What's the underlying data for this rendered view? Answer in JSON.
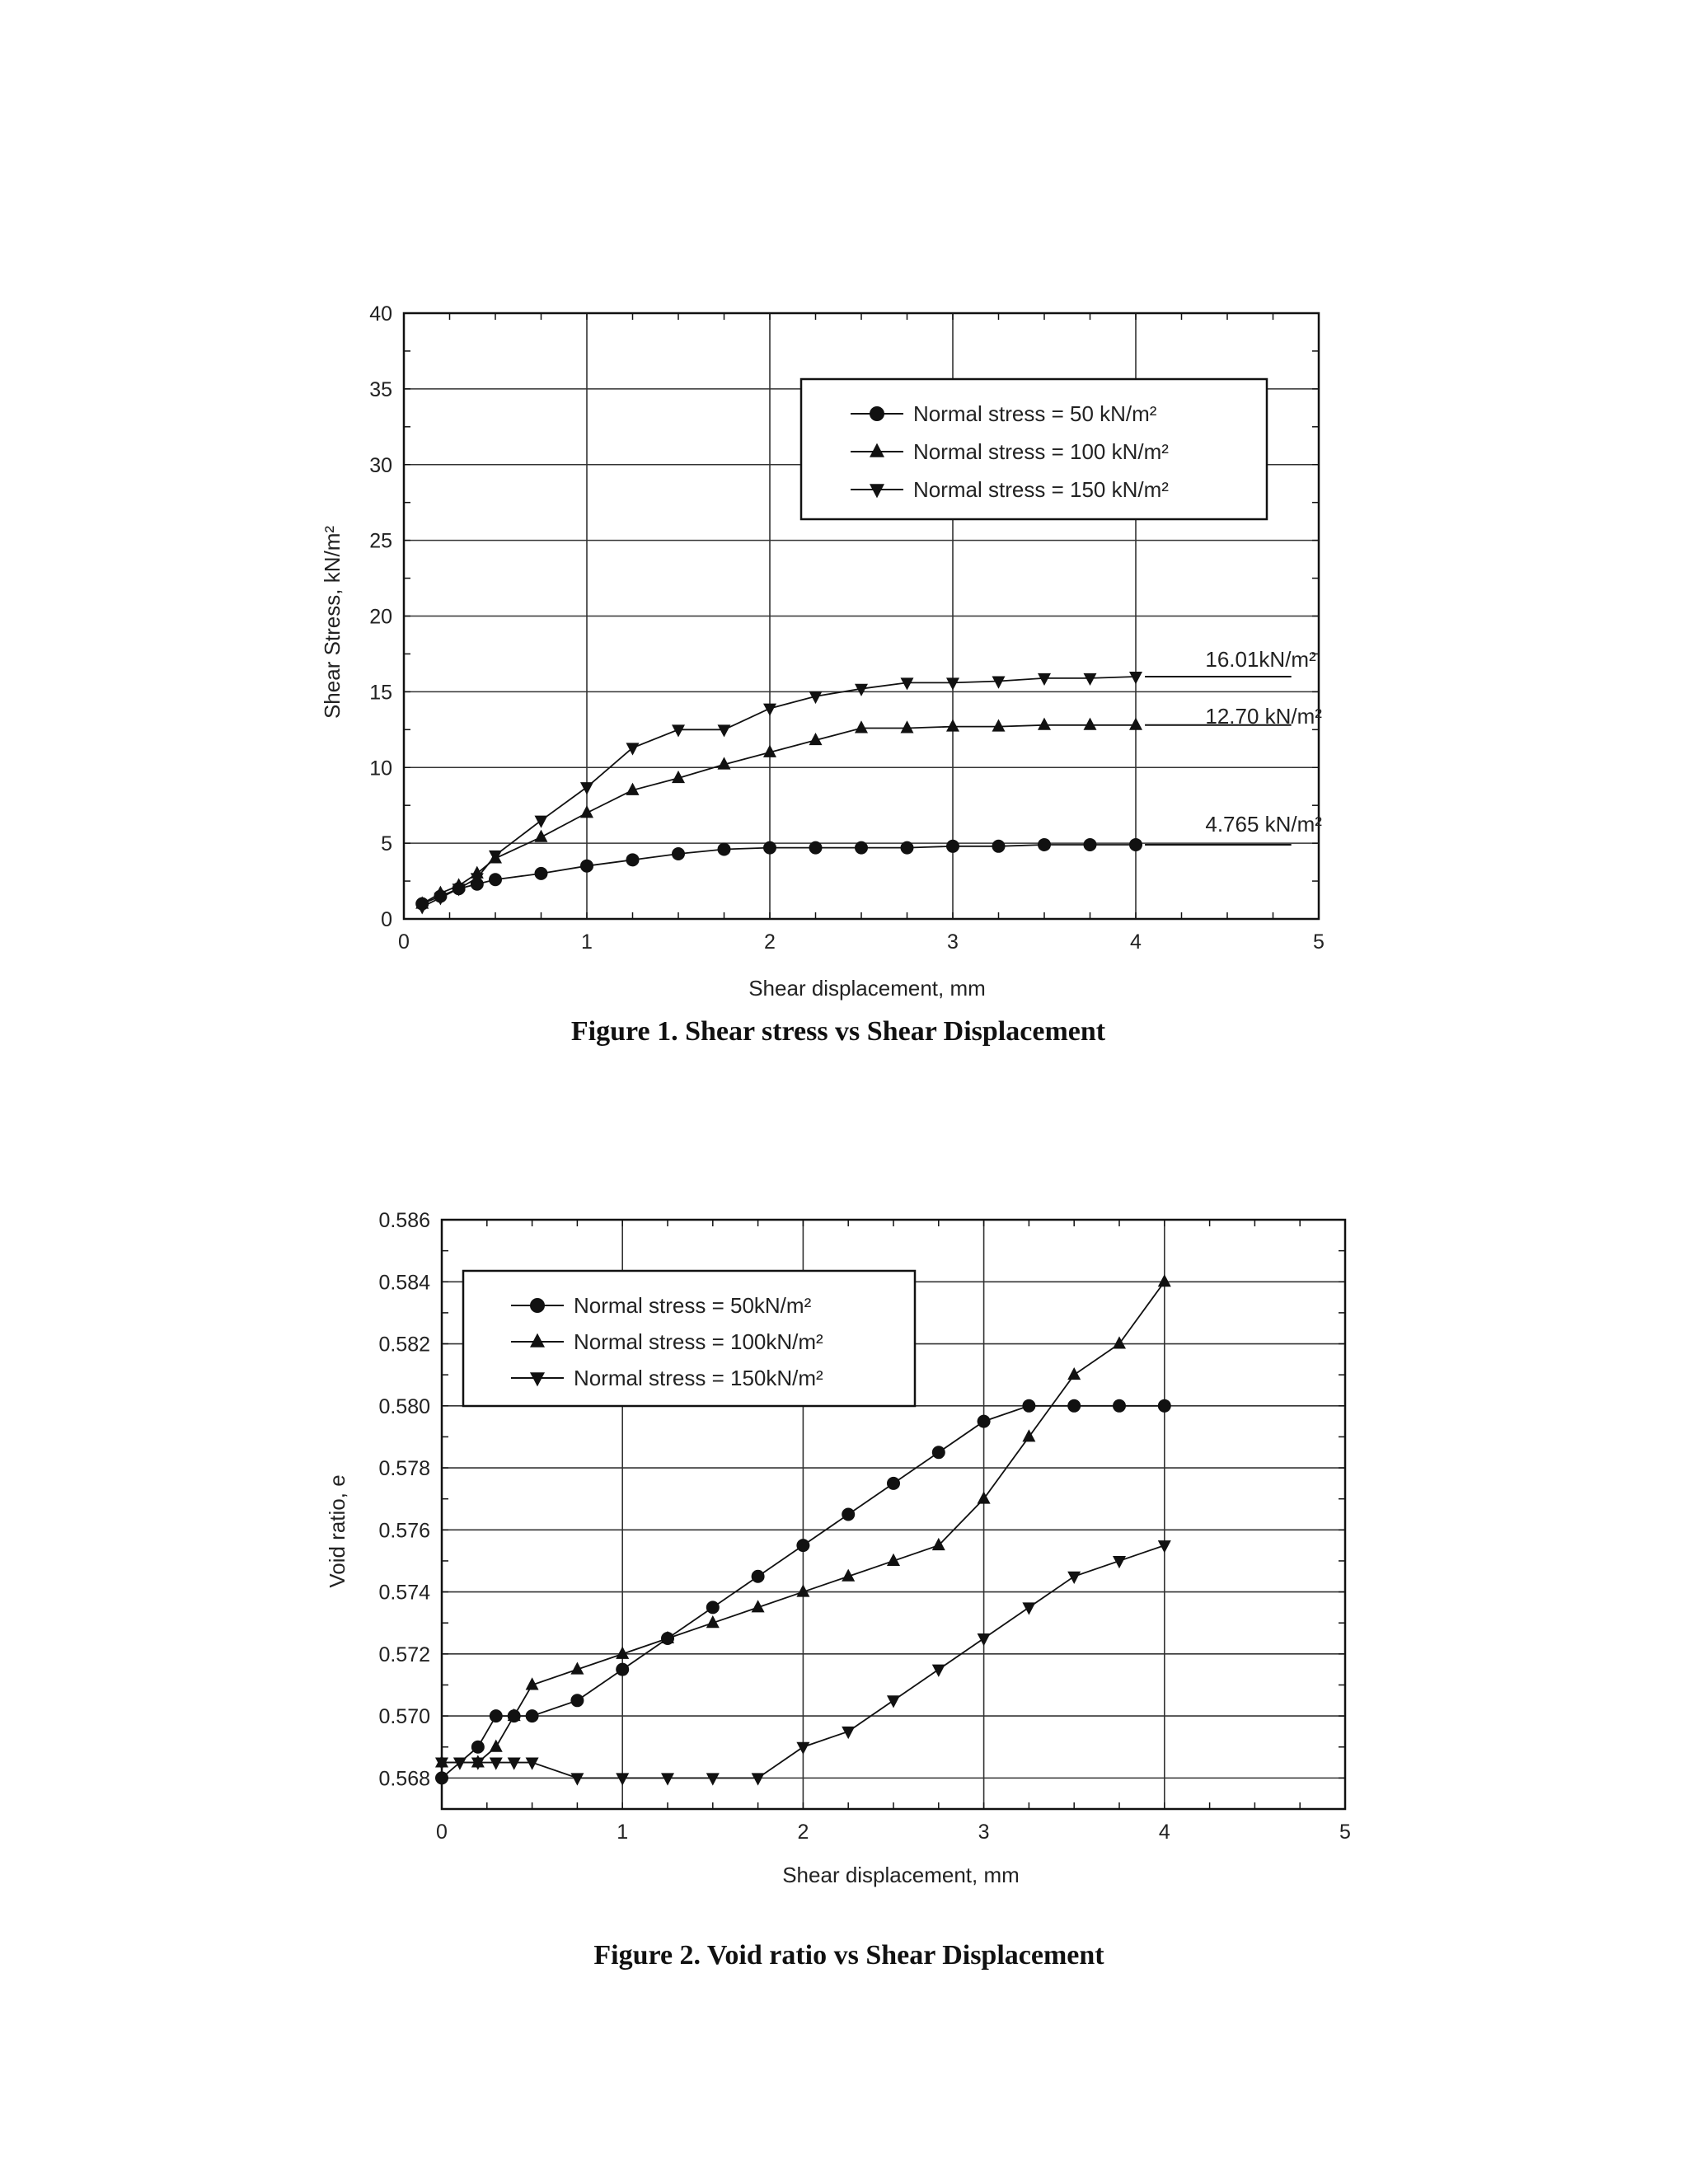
{
  "chart_data": [
    {
      "type": "line",
      "caption": "Figure 1. Shear stress vs Shear Displacement",
      "xlabel": "Shear displacement,  mm",
      "ylabel": "Shear Stress,  kN/m²",
      "xlim": [
        0,
        5
      ],
      "ylim": [
        0,
        40
      ],
      "x_ticks": [
        "0",
        "1",
        "2",
        "3",
        "4",
        "5"
      ],
      "y_ticks": [
        "0",
        "5",
        "10",
        "15",
        "20",
        "25",
        "30",
        "35",
        "40"
      ],
      "grid": true,
      "legend_position": "top-right",
      "series": [
        {
          "name": "Normal stress =  50 kN/m²",
          "marker": "circle",
          "x": [
            0.1,
            0.2,
            0.3,
            0.4,
            0.5,
            0.75,
            1.0,
            1.25,
            1.5,
            1.75,
            2.0,
            2.25,
            2.5,
            2.75,
            3.0,
            3.25,
            3.5,
            3.75,
            4.0
          ],
          "y": [
            1.0,
            1.5,
            2.0,
            2.3,
            2.6,
            3.0,
            3.5,
            3.9,
            4.3,
            4.6,
            4.7,
            4.7,
            4.7,
            4.7,
            4.8,
            4.8,
            4.9,
            4.9,
            4.9
          ]
        },
        {
          "name": "Normal stress = 100 kN/m²",
          "marker": "triangle-up",
          "x": [
            0.1,
            0.2,
            0.3,
            0.4,
            0.5,
            0.75,
            1.0,
            1.25,
            1.5,
            1.75,
            2.0,
            2.25,
            2.5,
            2.75,
            3.0,
            3.25,
            3.5,
            3.75,
            4.0
          ],
          "y": [
            1.0,
            1.7,
            2.2,
            3.0,
            4.0,
            5.4,
            7.0,
            8.5,
            9.3,
            10.2,
            11.0,
            11.8,
            12.6,
            12.6,
            12.7,
            12.7,
            12.8,
            12.8,
            12.8
          ]
        },
        {
          "name": "Normal stress = 150 kN/m²",
          "marker": "triangle-down",
          "x": [
            0.1,
            0.2,
            0.3,
            0.4,
            0.5,
            0.75,
            1.0,
            1.25,
            1.5,
            1.75,
            2.0,
            2.25,
            2.5,
            2.75,
            3.0,
            3.25,
            3.5,
            3.75,
            4.0
          ],
          "y": [
            0.8,
            1.4,
            2.0,
            2.7,
            4.2,
            6.5,
            8.7,
            11.3,
            12.5,
            12.5,
            13.9,
            14.7,
            15.2,
            15.6,
            15.6,
            15.7,
            15.9,
            15.9,
            16.0
          ]
        }
      ],
      "annotations": [
        "16.01kN/m²",
        "12.70 kN/m²",
        "4.765 kN/m²"
      ]
    },
    {
      "type": "line",
      "caption": "Figure 2. Void ratio vs Shear Displacement",
      "xlabel": "Shear displacement, mm",
      "ylabel": "Void ratio, e",
      "xlim": [
        0,
        5
      ],
      "ylim": [
        0.567,
        0.586
      ],
      "x_ticks": [
        "0",
        "1",
        "2",
        "3",
        "4",
        "5"
      ],
      "y_ticks": [
        "0.568",
        "0.570",
        "0.572",
        "0.574",
        "0.576",
        "0.578",
        "0.580",
        "0.582",
        "0.584",
        "0.586"
      ],
      "grid": true,
      "legend_position": "top-left",
      "series": [
        {
          "name": "Normal stress =  50kN/m²",
          "marker": "circle",
          "x": [
            0,
            0.2,
            0.3,
            0.4,
            0.5,
            0.75,
            1.0,
            1.25,
            1.5,
            1.75,
            2.0,
            2.25,
            2.5,
            2.75,
            3.0,
            3.25,
            3.5,
            3.75,
            4.0
          ],
          "y": [
            0.568,
            0.569,
            0.57,
            0.57,
            0.57,
            0.5705,
            0.5715,
            0.5725,
            0.5735,
            0.5745,
            0.5755,
            0.5765,
            0.5775,
            0.5785,
            0.5795,
            0.58,
            0.58,
            0.58,
            0.58
          ]
        },
        {
          "name": "Normal stress = 100kN/m²",
          "marker": "triangle-up",
          "x": [
            0,
            0.2,
            0.3,
            0.4,
            0.5,
            0.75,
            1.0,
            1.25,
            1.5,
            1.75,
            2.0,
            2.25,
            2.5,
            2.75,
            3.0,
            3.25,
            3.5,
            3.75,
            4.0
          ],
          "y": [
            0.5685,
            0.5685,
            0.569,
            0.57,
            0.571,
            0.5715,
            0.572,
            0.5725,
            0.573,
            0.5735,
            0.574,
            0.5745,
            0.575,
            0.5755,
            0.577,
            0.579,
            0.581,
            0.582,
            0.584
          ]
        },
        {
          "name": "Normal stress = 150kN/m²",
          "marker": "triangle-down",
          "x": [
            0,
            0.1,
            0.2,
            0.3,
            0.4,
            0.5,
            0.75,
            1.0,
            1.25,
            1.5,
            1.75,
            2.0,
            2.25,
            2.5,
            2.75,
            3.0,
            3.25,
            3.5,
            3.75,
            4.0
          ],
          "y": [
            0.5685,
            0.5685,
            0.5685,
            0.5685,
            0.5685,
            0.5685,
            0.568,
            0.568,
            0.568,
            0.568,
            0.568,
            0.569,
            0.5695,
            0.5705,
            0.5715,
            0.5725,
            0.5735,
            0.5745,
            0.575,
            0.5755
          ]
        }
      ]
    }
  ]
}
